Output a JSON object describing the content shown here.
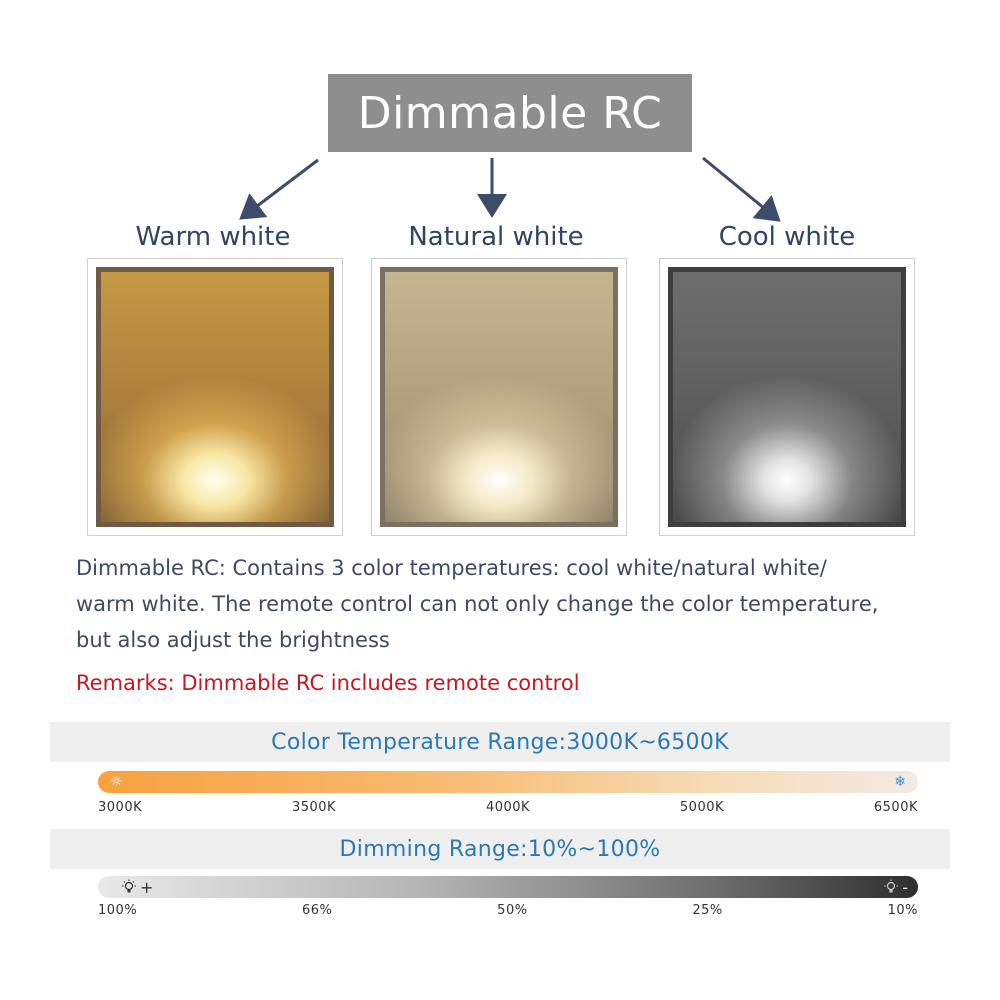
{
  "header": {
    "title": "Dimmable RC"
  },
  "panels": [
    {
      "label": "Warm white"
    },
    {
      "label": "Natural white"
    },
    {
      "label": "Cool white"
    }
  ],
  "description": {
    "line1": "Dimmable RC: Contains 3 color temperatures: cool white/natural white/",
    "line2": "warm white. The remote control can not only change the color temperature,",
    "line3": "but also adjust the brightness"
  },
  "remark": "Remarks: Dimmable RC includes remote control",
  "color_temperature": {
    "title": "Color Temperature Range:3000K~6500K",
    "ticks": [
      "3000K",
      "3500K",
      "4000K",
      "5000K",
      "6500K"
    ],
    "start_icon": "sun-icon",
    "end_icon": "snowflake-icon",
    "gradient_colors": [
      "#f7a23f",
      "#f2ebe4"
    ]
  },
  "dimming": {
    "title": "Dimming Range:10%~100%",
    "ticks": [
      "100%",
      "66%",
      "50%",
      "25%",
      "10%"
    ],
    "start_icon": "bulb-bright-icon",
    "end_icon": "bulb-dim-icon",
    "plus_symbol": "+",
    "minus_symbol": "-",
    "gradient_colors": [
      "#e9e9e9",
      "#2e2e2e"
    ]
  },
  "colors": {
    "title_bg": "#8e8e8e",
    "label_text": "#2f4563",
    "remark_text": "#c8161e",
    "band_text": "#2a78b5",
    "arrow": "#3c4d6a"
  }
}
